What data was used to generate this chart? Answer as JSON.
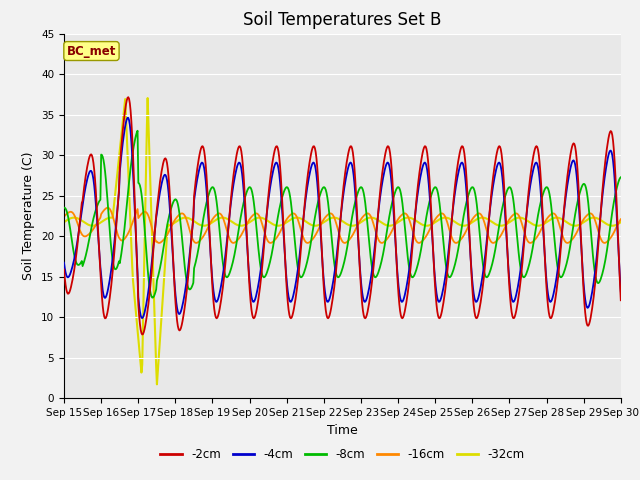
{
  "title": "Soil Temperatures Set B",
  "xlabel": "Time",
  "ylabel": "Soil Temperature (C)",
  "annotation": "BC_met",
  "ylim": [
    0,
    45
  ],
  "series": {
    "-2cm": {
      "color": "#cc0000",
      "linewidth": 1.3
    },
    "-4cm": {
      "color": "#0000cc",
      "linewidth": 1.3
    },
    "-8cm": {
      "color": "#00bb00",
      "linewidth": 1.3
    },
    "-16cm": {
      "color": "#ff8800",
      "linewidth": 1.3
    },
    "-32cm": {
      "color": "#dddd00",
      "linewidth": 1.5
    }
  },
  "legend_labels": [
    "-2cm",
    "-4cm",
    "-8cm",
    "-16cm",
    "-32cm"
  ],
  "legend_colors": [
    "#cc0000",
    "#0000cc",
    "#00bb00",
    "#ff8800",
    "#dddd00"
  ],
  "xtick_labels": [
    "Sep 15",
    "Sep 16",
    "Sep 17",
    "Sep 18",
    "Sep 19",
    "Sep 20",
    "Sep 21",
    "Sep 22",
    "Sep 23",
    "Sep 24",
    "Sep 25",
    "Sep 26",
    "Sep 27",
    "Sep 28",
    "Sep 29",
    "Sep 30"
  ],
  "title_fontsize": 12,
  "label_fontsize": 9,
  "tick_fontsize": 7.5
}
